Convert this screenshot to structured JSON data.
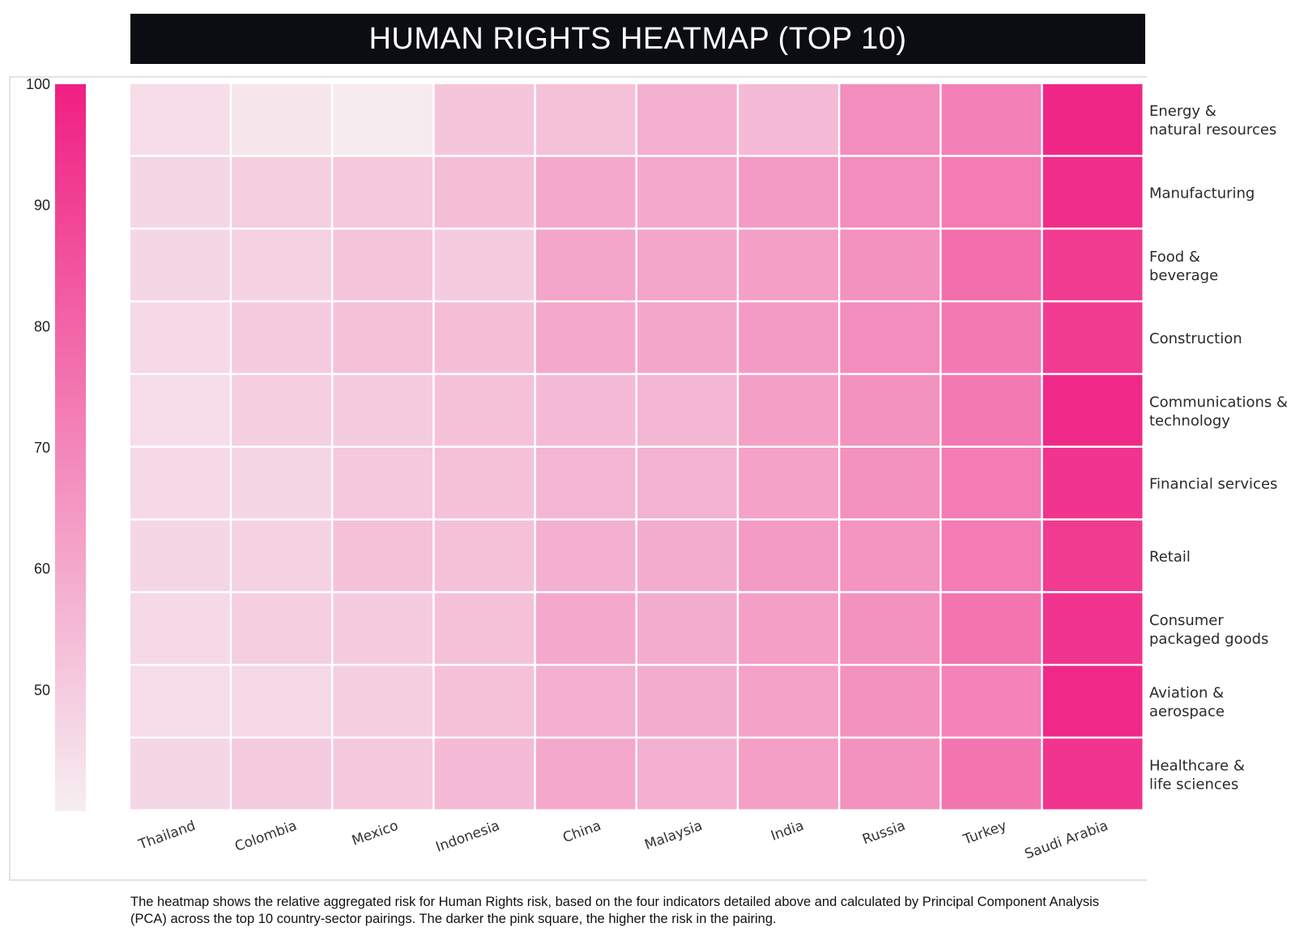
{
  "chart_data": {
    "type": "heatmap",
    "title": "HUMAN RIGHTS HEATMAP (TOP 10)",
    "x_categories": [
      "Thailand",
      "Colombia",
      "Mexico",
      "Indonesia",
      "China",
      "Malaysia",
      "India",
      "Russia",
      "Turkey",
      "Saudi Arabia"
    ],
    "y_categories": [
      [
        "Energy &",
        "natural resources"
      ],
      [
        "Manufacturing"
      ],
      [
        "Food &",
        "beverage"
      ],
      [
        "Construction"
      ],
      [
        "Communications &",
        "technology"
      ],
      [
        "Financial services"
      ],
      [
        "Retail"
      ],
      [
        "Consumer",
        "packaged goods"
      ],
      [
        "Aviation &",
        "aerospace"
      ],
      [
        "Healthcare &",
        "life sciences"
      ]
    ],
    "values": [
      [
        45,
        42,
        41,
        52,
        53,
        58,
        55,
        68,
        72,
        98
      ],
      [
        47,
        49,
        51,
        54,
        60,
        60,
        64,
        68,
        73,
        96
      ],
      [
        47,
        48,
        52,
        50,
        61,
        61,
        63,
        67,
        77,
        92
      ],
      [
        46,
        50,
        53,
        54,
        60,
        61,
        64,
        68,
        74,
        92
      ],
      [
        45,
        49,
        50,
        53,
        55,
        56,
        63,
        67,
        74,
        97
      ],
      [
        46,
        47,
        51,
        53,
        56,
        57,
        62,
        67,
        73,
        94
      ],
      [
        47,
        48,
        53,
        53,
        58,
        59,
        64,
        66,
        73,
        92
      ],
      [
        46,
        49,
        50,
        53,
        60,
        59,
        63,
        67,
        75,
        94
      ],
      [
        45,
        46,
        49,
        53,
        58,
        59,
        62,
        67,
        71,
        97
      ],
      [
        47,
        50,
        51,
        55,
        60,
        58,
        63,
        67,
        75,
        94
      ]
    ],
    "colorbar": {
      "ticks": [
        100,
        90,
        80,
        70,
        60,
        50
      ],
      "range": [
        40,
        100
      ],
      "low_color": "#f6eef1",
      "high_color": "#f01f82"
    }
  },
  "caption": "The heatmap shows the relative aggregated risk for Human Rights risk, based on the four indicators detailed above and calculated by Principal Component Analysis (PCA) across the top 10 country-sector pairings. The darker the pink square, the higher the risk in the pairing."
}
